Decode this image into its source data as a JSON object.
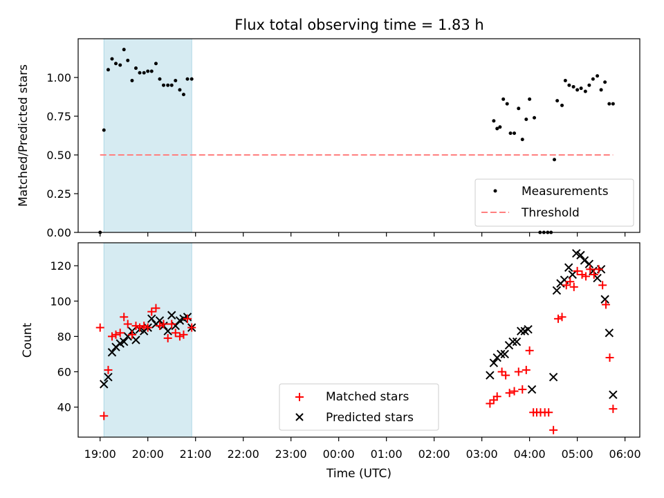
{
  "chart_data": [
    {
      "type": "scatter",
      "title": "Flux total observing time = 1.83 h",
      "xlabel": "",
      "ylabel": "Matched/Predicted stars",
      "xlim": [
        18.54,
        30.31
      ],
      "ylim": [
        0,
        1.25
      ],
      "yticks": [
        "0.00",
        "0.25",
        "0.50",
        "0.75",
        "1.00"
      ],
      "ytick_values": [
        0,
        0.25,
        0.5,
        0.75,
        1.0
      ],
      "shaded_region": {
        "x": [
          19.08,
          20.92
        ],
        "color": "#add8e6"
      },
      "legend_position": "lower right",
      "series": [
        {
          "name": "Measurements",
          "marker": "dot",
          "color": "#000000",
          "x": [
            19.0,
            19.08,
            19.17,
            19.25,
            19.33,
            19.42,
            19.5,
            19.58,
            19.67,
            19.75,
            19.83,
            19.92,
            20.0,
            20.08,
            20.17,
            20.25,
            20.33,
            20.42,
            20.5,
            20.58,
            20.67,
            20.75,
            20.83,
            20.92,
            27.25,
            27.32,
            27.38,
            27.45,
            27.53,
            27.6,
            27.68,
            27.77,
            27.85,
            27.93,
            28.0,
            28.1,
            28.22,
            28.3,
            28.38,
            28.45,
            28.52,
            28.58,
            28.68,
            28.75,
            28.83,
            28.92,
            29.0,
            29.08,
            29.17,
            29.25,
            29.33,
            29.42,
            29.5,
            29.58,
            29.67,
            29.75
          ],
          "y": [
            0.0,
            0.66,
            1.05,
            1.12,
            1.09,
            1.08,
            1.18,
            1.11,
            0.98,
            1.06,
            1.03,
            1.03,
            1.04,
            1.04,
            1.09,
            0.99,
            0.95,
            0.95,
            0.95,
            0.98,
            0.92,
            0.89,
            0.99,
            0.99,
            0.72,
            0.67,
            0.68,
            0.86,
            0.83,
            0.64,
            0.64,
            0.8,
            0.6,
            0.73,
            0.86,
            0.74,
            0.0,
            0.0,
            0.0,
            0.0,
            0.47,
            0.85,
            0.82,
            0.98,
            0.95,
            0.94,
            0.92,
            0.93,
            0.91,
            0.95,
            0.99,
            1.01,
            0.92,
            0.97,
            0.83,
            0.83
          ]
        },
        {
          "name": "Threshold",
          "marker": "dashed-line",
          "color": "#ff7f7f",
          "x": [
            19.0,
            29.75
          ],
          "y": [
            0.5,
            0.5
          ]
        }
      ]
    },
    {
      "type": "scatter",
      "title": "",
      "xlabel": "Time (UTC)",
      "ylabel": "Count",
      "xlim": [
        18.54,
        30.31
      ],
      "ylim": [
        23,
        133
      ],
      "yticks": [
        "40",
        "60",
        "80",
        "100",
        "120"
      ],
      "ytick_values": [
        40,
        60,
        80,
        100,
        120
      ],
      "xticks": [
        "19:00",
        "20:00",
        "21:00",
        "22:00",
        "23:00",
        "00:00",
        "01:00",
        "02:00",
        "03:00",
        "04:00",
        "05:00",
        "06:00"
      ],
      "xtick_values": [
        19,
        20,
        21,
        22,
        23,
        24,
        25,
        26,
        27,
        28,
        29,
        30
      ],
      "shaded_region": {
        "x": [
          19.08,
          20.92
        ],
        "color": "#add8e6"
      },
      "legend_position": "lower center",
      "series": [
        {
          "name": "Matched stars",
          "marker": "plus",
          "color": "#ff0000",
          "x": [
            19.0,
            19.08,
            19.17,
            19.25,
            19.33,
            19.42,
            19.5,
            19.58,
            19.67,
            19.75,
            19.83,
            19.92,
            20.0,
            20.08,
            20.17,
            20.25,
            20.33,
            20.42,
            20.5,
            20.58,
            20.67,
            20.75,
            20.83,
            20.92,
            27.17,
            27.25,
            27.32,
            27.42,
            27.5,
            27.58,
            27.68,
            27.77,
            27.85,
            27.93,
            28.0,
            28.08,
            28.15,
            28.23,
            28.32,
            28.4,
            28.5,
            28.6,
            28.68,
            28.77,
            28.85,
            28.93,
            29.0,
            29.1,
            29.18,
            29.27,
            29.35,
            29.45,
            29.53,
            29.6,
            29.68,
            29.75
          ],
          "y": [
            85,
            35,
            61,
            80,
            81,
            82,
            91,
            87,
            81,
            86,
            85,
            86,
            85,
            94,
            96,
            86,
            87,
            79,
            87,
            82,
            80,
            81,
            90,
            85,
            42,
            44,
            46,
            60,
            58,
            48,
            49,
            60,
            50,
            61,
            72,
            37,
            37,
            37,
            37,
            37,
            27,
            90,
            91,
            109,
            111,
            108,
            117,
            115,
            114,
            118,
            115,
            118,
            109,
            98,
            68,
            39
          ]
        },
        {
          "name": "Predicted stars",
          "marker": "x",
          "color": "#000000",
          "x": [
            19.08,
            19.17,
            19.25,
            19.33,
            19.42,
            19.5,
            19.58,
            19.67,
            19.75,
            19.83,
            19.92,
            20.0,
            20.08,
            20.17,
            20.25,
            20.33,
            20.42,
            20.5,
            20.58,
            20.67,
            20.75,
            20.83,
            20.92,
            27.17,
            27.25,
            27.32,
            27.4,
            27.48,
            27.57,
            27.65,
            27.73,
            27.82,
            27.9,
            27.97,
            28.05,
            28.5,
            28.57,
            28.65,
            28.73,
            28.82,
            28.9,
            28.98,
            29.07,
            29.15,
            29.25,
            29.33,
            29.42,
            29.5,
            29.58,
            29.67,
            29.75
          ],
          "y": [
            53,
            57,
            71,
            74,
            76,
            77,
            80,
            83,
            78,
            84,
            83,
            85,
            90,
            87,
            89,
            86,
            83,
            92,
            86,
            89,
            90,
            91,
            85,
            58,
            65,
            68,
            70,
            70,
            75,
            77,
            77,
            83,
            83,
            84,
            50,
            57,
            106,
            110,
            112,
            119,
            115,
            127,
            126,
            123,
            121,
            117,
            113,
            118,
            101,
            82,
            47
          ]
        }
      ]
    }
  ]
}
